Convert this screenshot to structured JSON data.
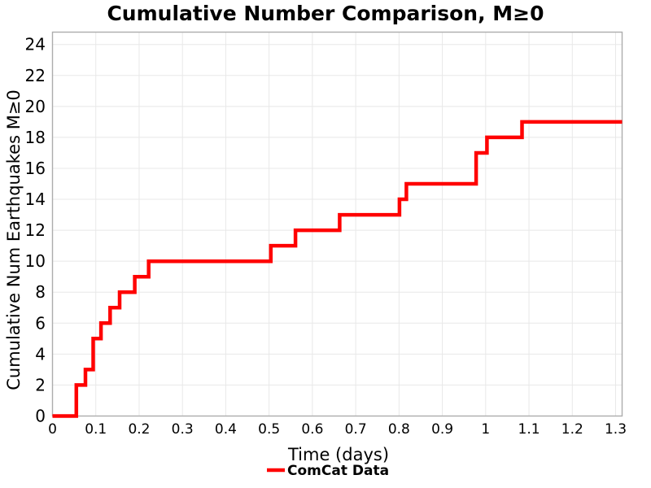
{
  "chart_data": {
    "type": "line",
    "subtype": "step-post",
    "title": "Cumulative Number Comparison, M≥0",
    "xlabel": "Time (days)",
    "ylabel": "Cumulative Num Earthquakes M≥0",
    "xlim": [
      0,
      1.315
    ],
    "ylim": [
      0,
      24.8
    ],
    "grid": true,
    "background": "#ffffff",
    "gridline_color": "#e8e8e8",
    "border_color": "#adadad",
    "legend_position": "bottom-center",
    "x_ticks": [
      0,
      0.1,
      0.2,
      0.3,
      0.4,
      0.5,
      0.6,
      0.7,
      0.8,
      0.9,
      1,
      1.1,
      1.2,
      1.3
    ],
    "x_tick_labels": [
      "0",
      "0.1",
      "0.2",
      "0.3",
      "0.4",
      "0.5",
      "0.6",
      "0.7",
      "0.8",
      "0.9",
      "1",
      "1.1",
      "1.2",
      "1.3"
    ],
    "y_ticks": [
      0,
      2,
      4,
      6,
      8,
      10,
      12,
      14,
      16,
      18,
      20,
      22,
      24
    ],
    "y_tick_labels": [
      "0",
      "2",
      "4",
      "6",
      "8",
      "10",
      "12",
      "14",
      "16",
      "18",
      "20",
      "22",
      "24"
    ],
    "series": [
      {
        "name": "ComCat Data",
        "color": "#ff0000",
        "line_width": 4.5,
        "points_t_cumcount": [
          [
            0.0,
            0
          ],
          [
            0.055,
            2
          ],
          [
            0.076,
            3
          ],
          [
            0.094,
            5
          ],
          [
            0.112,
            6
          ],
          [
            0.133,
            7
          ],
          [
            0.155,
            8
          ],
          [
            0.19,
            9
          ],
          [
            0.222,
            10
          ],
          [
            0.504,
            11
          ],
          [
            0.561,
            12
          ],
          [
            0.663,
            13
          ],
          [
            0.801,
            14
          ],
          [
            0.817,
            15
          ],
          [
            0.978,
            17
          ],
          [
            1.003,
            18
          ],
          [
            1.084,
            19
          ],
          [
            1.315,
            19
          ]
        ]
      }
    ]
  }
}
